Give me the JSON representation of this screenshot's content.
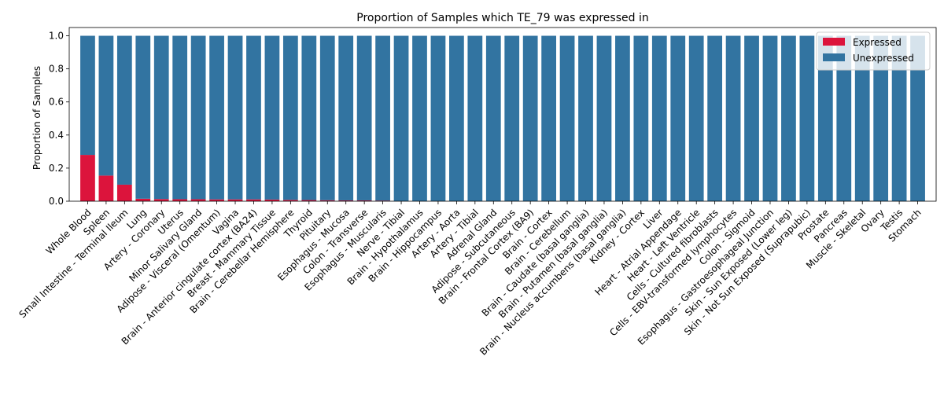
{
  "chart_data": {
    "type": "bar",
    "stacked": true,
    "title": "Proportion of Samples which TE_79 was expressed in",
    "ylabel": "Proportion of Samples",
    "xlabel": "",
    "ylim": [
      0,
      1.05
    ],
    "yticks": [
      "0.0",
      "0.2",
      "0.4",
      "0.6",
      "0.8",
      "1.0"
    ],
    "legend_position": "top-right",
    "categories": [
      "Whole Blood",
      "Spleen",
      "Small Intestine - Terminal Ileum",
      "Lung",
      "Artery - Coronary",
      "Uterus",
      "Minor Salivary Gland",
      "Adipose - Visceral (Omentum)",
      "Vagina",
      "Brain - Anterior cingulate cortex (BA24)",
      "Breast - Mammary Tissue",
      "Brain - Cerebellar Hemisphere",
      "Thyroid",
      "Pituitary",
      "Esophagus - Mucosa",
      "Colon - Transverse",
      "Esophagus - Muscularis",
      "Nerve - Tibial",
      "Brain - Hypothalamus",
      "Brain - Hippocampus",
      "Artery - Aorta",
      "Artery - Tibial",
      "Adrenal Gland",
      "Adipose - Subcutaneous",
      "Brain - Frontal Cortex (BA9)",
      "Brain - Cortex",
      "Brain - Cerebellum",
      "Brain - Caudate (basal ganglia)",
      "Brain - Putamen (basal ganglia)",
      "Brain - Nucleus accumbens (basal ganglia)",
      "Kidney - Cortex",
      "Liver",
      "Heart - Atrial Appendage",
      "Heart - Left Ventricle",
      "Cells - Cultured fibroblasts",
      "Cells - EBV-transformed lymphocytes",
      "Colon - Sigmoid",
      "Esophagus - Gastroesophageal Junction",
      "Skin - Sun Exposed (Lower leg)",
      "Skin - Not Sun Exposed (Suprapubic)",
      "Prostate",
      "Pancreas",
      "Muscle - Skeletal",
      "Ovary",
      "Testis",
      "Stomach"
    ],
    "series": [
      {
        "name": "Expressed",
        "color": "#dc143c",
        "values": [
          0.28,
          0.155,
          0.1,
          0.015,
          0.013,
          0.012,
          0.012,
          0.011,
          0.011,
          0.011,
          0.01,
          0.008,
          0.007,
          0.006,
          0.005,
          0.005,
          0.004,
          0,
          0,
          0,
          0,
          0,
          0,
          0,
          0,
          0,
          0,
          0,
          0,
          0,
          0,
          0,
          0,
          0,
          0,
          0,
          0,
          0,
          0,
          0,
          0,
          0,
          0,
          0,
          0,
          0
        ]
      },
      {
        "name": "Unexpressed",
        "color": "#3274a1",
        "values": [
          0.72,
          0.845,
          0.9,
          0.985,
          0.987,
          0.988,
          0.988,
          0.989,
          0.989,
          0.989,
          0.99,
          0.992,
          0.993,
          0.994,
          0.995,
          0.995,
          0.996,
          1,
          1,
          1,
          1,
          1,
          1,
          1,
          1,
          1,
          1,
          1,
          1,
          1,
          1,
          1,
          1,
          1,
          1,
          1,
          1,
          1,
          1,
          1,
          1,
          1,
          1,
          1,
          1,
          1
        ]
      }
    ]
  }
}
